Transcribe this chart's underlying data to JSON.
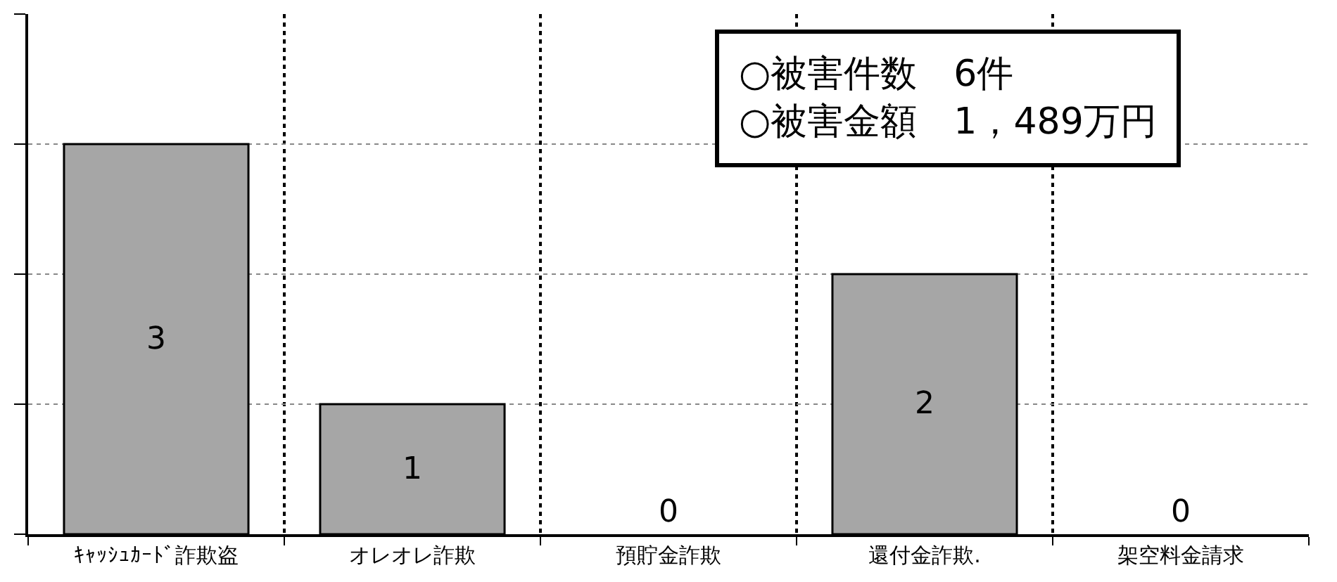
{
  "chart_data": {
    "type": "bar",
    "categories": [
      "ｷｬｯｼｭｶｰﾄﾞ詐欺盗",
      "オレオレ詐欺",
      "預貯金詐欺",
      "還付金詐欺.",
      "架空料金請求"
    ],
    "values": [
      3,
      1,
      0,
      2,
      0
    ],
    "color": "#a6a6a6",
    "data_labels": true,
    "ylim": [
      0,
      4
    ],
    "yticks": [
      {
        "value": 0,
        "label": null
      },
      {
        "value": 1,
        "label": null
      },
      {
        "value": 2,
        "label": null
      },
      {
        "value": 3,
        "label": null
      },
      {
        "value": 4,
        "label": null
      }
    ],
    "tick_labels": "x",
    "grid": true,
    "legend": false,
    "annotations": [
      "○被害件数　6件",
      "○被害金額　1，489万円"
    ]
  }
}
